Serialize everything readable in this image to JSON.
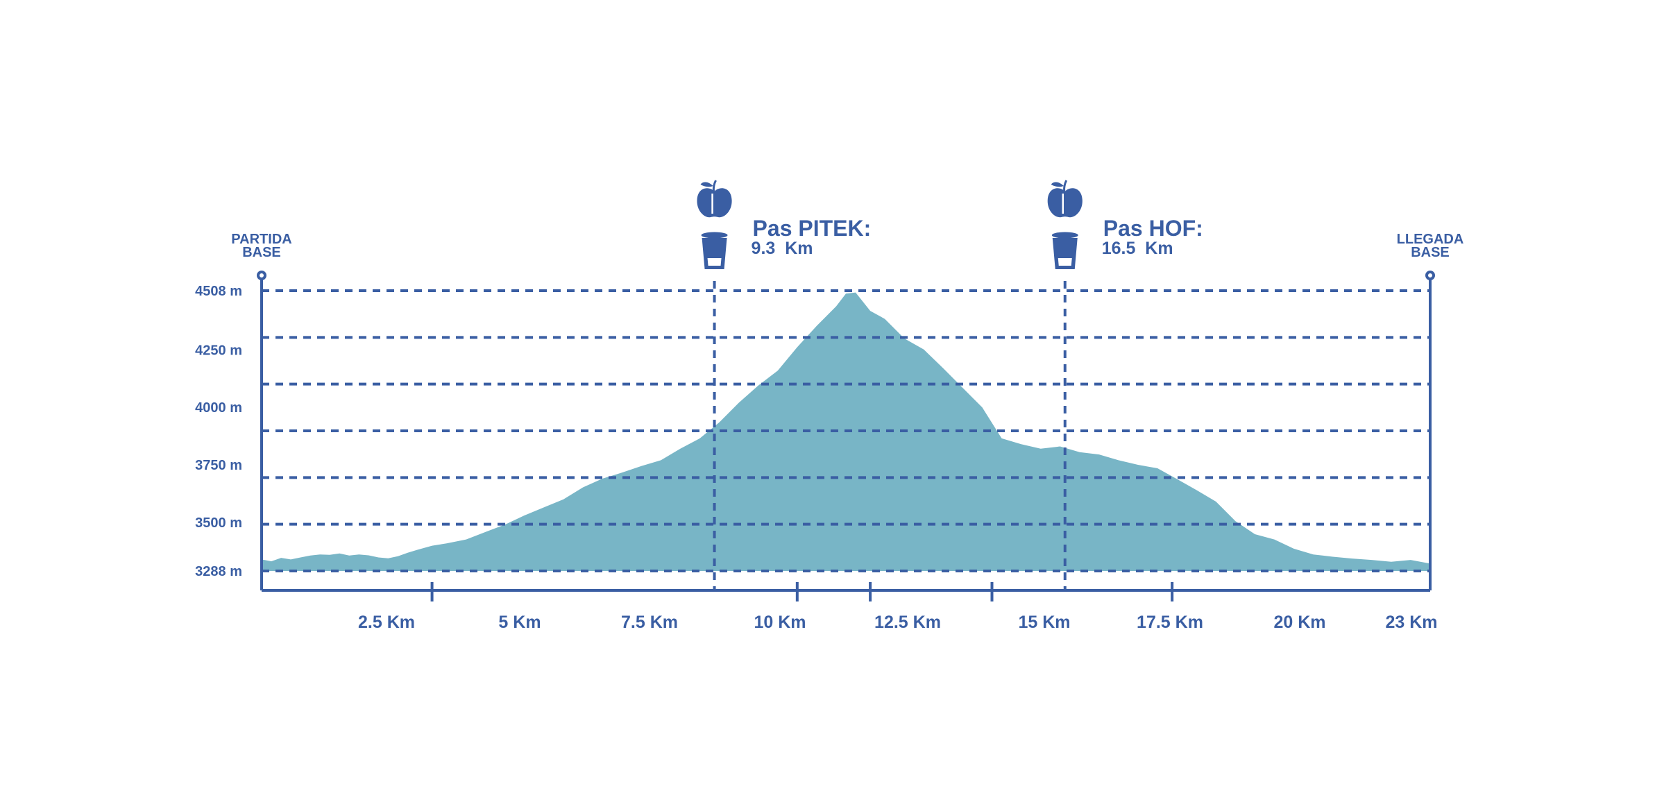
{
  "colors": {
    "line": "#3a5ea3",
    "area": "#78b5c6",
    "background": "#ffffff"
  },
  "start": {
    "line1": "PARTIDA",
    "line2": "BASE"
  },
  "end": {
    "line1": "LLEGADA",
    "line2": "BASE"
  },
  "aid_stations": [
    {
      "name": "Pas PITEK:",
      "distance": "9.3  Km",
      "km": 9.3,
      "icons": [
        "apple-icon",
        "cup-icon"
      ]
    },
    {
      "name": "Pas HOF:",
      "distance": "16.5  Km",
      "km": 16.5,
      "icons": [
        "apple-icon",
        "cup-icon"
      ]
    }
  ],
  "chart_data": {
    "type": "area",
    "title": "",
    "xlabel": "",
    "ylabel": "",
    "xlim": [
      0,
      24
    ],
    "ylim": [
      3288,
      4508
    ],
    "grid": true,
    "y_ticks": [
      {
        "value": 3288,
        "label": "3288 m"
      },
      {
        "value": 3500,
        "label": "3500 m"
      },
      {
        "value": 3750,
        "label": "3750 m"
      },
      {
        "value": 4000,
        "label": "4000 m"
      },
      {
        "value": 4250,
        "label": "4250 m"
      },
      {
        "value": 4508,
        "label": "4508 m"
      }
    ],
    "x_ticks": [
      {
        "value": 2.5,
        "label": "2.5 Km"
      },
      {
        "value": 5,
        "label": "5 Km"
      },
      {
        "value": 7.5,
        "label": "7.5 Km"
      },
      {
        "value": 10,
        "label": "10 Km"
      },
      {
        "value": 12.5,
        "label": "12.5 Km"
      },
      {
        "value": 15,
        "label": "15 Km"
      },
      {
        "value": 17.5,
        "label": "17.5 Km"
      },
      {
        "value": 20,
        "label": "20 Km"
      },
      {
        "value": 23,
        "label": "23 Km"
      }
    ],
    "x": [
      0,
      0.2,
      0.4,
      0.6,
      0.8,
      1.0,
      1.2,
      1.4,
      1.6,
      1.8,
      2.0,
      2.2,
      2.4,
      2.6,
      2.8,
      3.0,
      3.2,
      3.5,
      3.8,
      4.2,
      4.6,
      5.0,
      5.4,
      5.8,
      6.2,
      6.6,
      7.0,
      7.4,
      7.8,
      8.2,
      8.6,
      9.0,
      9.4,
      9.8,
      10.2,
      10.6,
      11.0,
      11.4,
      11.8,
      12.0,
      12.2,
      12.5,
      12.8,
      13.2,
      13.6,
      14.0,
      14.4,
      14.8,
      15.2,
      15.6,
      16.0,
      16.4,
      16.8,
      17.2,
      17.6,
      18.0,
      18.4,
      18.8,
      19.2,
      19.6,
      20.0,
      20.4,
      20.8,
      21.2,
      21.6,
      22.0,
      22.4,
      22.8,
      23.2,
      23.6,
      24.0
    ],
    "elevation": [
      3338,
      3330,
      3345,
      3338,
      3347,
      3355,
      3360,
      3358,
      3364,
      3355,
      3360,
      3356,
      3347,
      3343,
      3352,
      3367,
      3380,
      3398,
      3408,
      3425,
      3458,
      3490,
      3530,
      3565,
      3600,
      3652,
      3690,
      3716,
      3745,
      3770,
      3820,
      3865,
      3935,
      4020,
      4095,
      4160,
      4262,
      4355,
      4440,
      4495,
      4500,
      4420,
      4385,
      4300,
      4252,
      4170,
      4085,
      4000,
      3865,
      3840,
      3820,
      3830,
      3805,
      3795,
      3770,
      3750,
      3735,
      3688,
      3640,
      3590,
      3505,
      3448,
      3425,
      3385,
      3360,
      3350,
      3342,
      3336,
      3328,
      3336,
      3320
    ]
  }
}
